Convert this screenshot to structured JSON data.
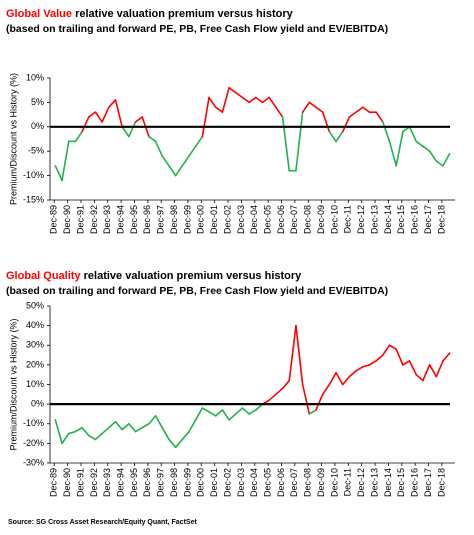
{
  "chart_data": [
    {
      "type": "line",
      "title_highlight": "Global Value",
      "title_rest": " relative valuation premium versus history",
      "subtitle": "(based on trailing and forward PE, PB, Free Cash Flow yield and EV/EBITDA)",
      "ylabel": "Premium/Discount vs History (%)",
      "colors": {
        "above": "#ff0000",
        "below": "#22b14c"
      },
      "xlim": [
        1989.6,
        2019.9
      ],
      "ylim": [
        -15,
        10
      ],
      "yticks": [
        {
          "value": -15,
          "label": "-15%"
        },
        {
          "value": -10,
          "label": "-10%"
        },
        {
          "value": -5,
          "label": "-5%"
        },
        {
          "value": 0,
          "label": "0%"
        },
        {
          "value": 5,
          "label": "5%"
        },
        {
          "value": 10,
          "label": "10%"
        }
      ],
      "xticks": [
        {
          "value": 1989.92,
          "label": "Dec-89"
        },
        {
          "value": 1990.92,
          "label": "Dec-90"
        },
        {
          "value": 1991.92,
          "label": "Dec-91"
        },
        {
          "value": 1992.92,
          "label": "Dec-92"
        },
        {
          "value": 1993.92,
          "label": "Dec-93"
        },
        {
          "value": 1994.92,
          "label": "Dec-94"
        },
        {
          "value": 1995.92,
          "label": "Dec-95"
        },
        {
          "value": 1996.92,
          "label": "Dec-96"
        },
        {
          "value": 1997.92,
          "label": "Dec-97"
        },
        {
          "value": 1998.92,
          "label": "Dec-98"
        },
        {
          "value": 1999.92,
          "label": "Dec-99"
        },
        {
          "value": 2000.92,
          "label": "Dec-00"
        },
        {
          "value": 2001.92,
          "label": "Dec-01"
        },
        {
          "value": 2002.92,
          "label": "Dec-02"
        },
        {
          "value": 2003.92,
          "label": "Dec-03"
        },
        {
          "value": 2004.92,
          "label": "Dec-04"
        },
        {
          "value": 2005.92,
          "label": "Dec-05"
        },
        {
          "value": 2006.92,
          "label": "Dec-06"
        },
        {
          "value": 2007.92,
          "label": "Dec-07"
        },
        {
          "value": 2008.92,
          "label": "Dec-08"
        },
        {
          "value": 2009.92,
          "label": "Dec-09"
        },
        {
          "value": 2010.92,
          "label": "Dec-10"
        },
        {
          "value": 2011.92,
          "label": "Dec-11"
        },
        {
          "value": 2012.92,
          "label": "Dec-12"
        },
        {
          "value": 2013.92,
          "label": "Dec-13"
        },
        {
          "value": 2014.92,
          "label": "Dec-14"
        },
        {
          "value": 2015.92,
          "label": "Dec-15"
        },
        {
          "value": 2016.92,
          "label": "Dec-16"
        },
        {
          "value": 2017.92,
          "label": "Dec-17"
        },
        {
          "value": 2018.92,
          "label": "Dec-18"
        }
      ],
      "x": [
        1990.0,
        1990.5,
        1991.0,
        1991.5,
        1992.0,
        1992.5,
        1993.0,
        1993.5,
        1994.0,
        1994.5,
        1995.0,
        1995.5,
        1996.0,
        1996.5,
        1997.0,
        1997.5,
        1998.0,
        1998.5,
        1999.0,
        1999.5,
        2000.0,
        2000.5,
        2001.0,
        2001.5,
        2002.0,
        2002.5,
        2003.0,
        2003.5,
        2004.0,
        2004.5,
        2005.0,
        2005.5,
        2006.0,
        2006.5,
        2007.0,
        2007.5,
        2008.0,
        2008.5,
        2009.0,
        2009.5,
        2010.0,
        2010.5,
        2011.0,
        2011.5,
        2012.0,
        2012.5,
        2013.0,
        2013.5,
        2014.0,
        2014.5,
        2015.0,
        2015.5,
        2016.0,
        2016.5,
        2017.0,
        2017.5,
        2018.0,
        2018.5,
        2019.0,
        2019.5
      ],
      "values": [
        -8,
        -11,
        -3,
        -3,
        -1,
        2,
        3,
        1,
        4,
        5.5,
        0,
        -2,
        1,
        2,
        -2,
        -3,
        -6,
        -8,
        -10,
        -8,
        -6,
        -4,
        -2,
        6,
        4,
        3,
        8,
        7,
        6,
        5,
        6,
        5,
        6,
        4,
        2,
        -9,
        -9,
        3,
        5,
        4,
        3,
        -1,
        -3,
        -1,
        2,
        3,
        4,
        3,
        3,
        1,
        -3,
        -8,
        -1,
        0,
        -3,
        -4,
        -5,
        -7,
        -8,
        -5.5
      ]
    },
    {
      "type": "line",
      "title_highlight": "Global Quality",
      "title_rest": " relative valuation premium versus history",
      "subtitle": "(based on trailing and forward PE, PB, Free Cash Flow yield and EV/EBITDA)",
      "ylabel": "Premium/Discount vs History (%)",
      "colors": {
        "above": "#ff0000",
        "below": "#22b14c"
      },
      "xlim": [
        1989.6,
        2019.9
      ],
      "ylim": [
        -30,
        50
      ],
      "yticks": [
        {
          "value": -30,
          "label": "-30%"
        },
        {
          "value": -20,
          "label": "-20%"
        },
        {
          "value": -10,
          "label": "-10%"
        },
        {
          "value": 0,
          "label": "0%"
        },
        {
          "value": 10,
          "label": "10%"
        },
        {
          "value": 20,
          "label": "20%"
        },
        {
          "value": 30,
          "label": "30%"
        },
        {
          "value": 40,
          "label": "40%"
        },
        {
          "value": 50,
          "label": "50%"
        }
      ],
      "xticks": [
        {
          "value": 1989.92,
          "label": "Dec-89"
        },
        {
          "value": 1990.92,
          "label": "Dec-90"
        },
        {
          "value": 1991.92,
          "label": "Dec-91"
        },
        {
          "value": 1992.92,
          "label": "Dec-92"
        },
        {
          "value": 1993.92,
          "label": "Dec-93"
        },
        {
          "value": 1994.92,
          "label": "Dec-94"
        },
        {
          "value": 1995.92,
          "label": "Dec-95"
        },
        {
          "value": 1996.92,
          "label": "Dec-96"
        },
        {
          "value": 1997.92,
          "label": "Dec-97"
        },
        {
          "value": 1998.92,
          "label": "Dec-98"
        },
        {
          "value": 1999.92,
          "label": "Dec-99"
        },
        {
          "value": 2000.92,
          "label": "Dec-00"
        },
        {
          "value": 2001.92,
          "label": "Dec-01"
        },
        {
          "value": 2002.92,
          "label": "Dec-02"
        },
        {
          "value": 2003.92,
          "label": "Dec-03"
        },
        {
          "value": 2004.92,
          "label": "Dec-04"
        },
        {
          "value": 2005.92,
          "label": "Dec-05"
        },
        {
          "value": 2006.92,
          "label": "Dec-06"
        },
        {
          "value": 2007.92,
          "label": "Dec-07"
        },
        {
          "value": 2008.92,
          "label": "Dec-08"
        },
        {
          "value": 2009.92,
          "label": "Dec-09"
        },
        {
          "value": 2010.92,
          "label": "Dec-10"
        },
        {
          "value": 2011.92,
          "label": "Dec-11"
        },
        {
          "value": 2012.92,
          "label": "Dec-12"
        },
        {
          "value": 2013.92,
          "label": "Dec-13"
        },
        {
          "value": 2014.92,
          "label": "Dec-14"
        },
        {
          "value": 2015.92,
          "label": "Dec-15"
        },
        {
          "value": 2016.92,
          "label": "Dec-16"
        },
        {
          "value": 2017.92,
          "label": "Dec-17"
        },
        {
          "value": 2018.92,
          "label": "Dec-18"
        }
      ],
      "x": [
        1990.0,
        1990.5,
        1991.0,
        1991.5,
        1992.0,
        1992.5,
        1993.0,
        1993.5,
        1994.0,
        1994.5,
        1995.0,
        1995.5,
        1996.0,
        1996.5,
        1997.0,
        1997.5,
        1998.0,
        1998.5,
        1999.0,
        1999.5,
        2000.0,
        2000.5,
        2001.0,
        2001.5,
        2002.0,
        2002.5,
        2003.0,
        2003.5,
        2004.0,
        2004.5,
        2005.0,
        2005.5,
        2006.0,
        2006.5,
        2007.0,
        2007.5,
        2008.0,
        2008.5,
        2009.0,
        2009.5,
        2010.0,
        2010.5,
        2011.0,
        2011.5,
        2012.0,
        2012.5,
        2013.0,
        2013.5,
        2014.0,
        2014.5,
        2015.0,
        2015.5,
        2016.0,
        2016.5,
        2017.0,
        2017.5,
        2018.0,
        2018.5,
        2019.0,
        2019.5
      ],
      "values": [
        -8,
        -20,
        -15,
        -14,
        -12,
        -16,
        -18,
        -15,
        -12,
        -9,
        -13,
        -10,
        -14,
        -12,
        -10,
        -6,
        -12,
        -18,
        -22,
        -18,
        -14,
        -8,
        -2,
        -4,
        -6,
        -3,
        -8,
        -5,
        -2,
        -5,
        -3,
        0,
        2,
        5,
        8,
        12,
        40,
        10,
        -5,
        -3,
        5,
        10,
        16,
        10,
        14,
        17,
        19,
        20,
        22,
        25,
        30,
        28,
        20,
        22,
        15,
        12,
        20,
        14,
        22,
        26
      ]
    }
  ],
  "source": "Source: SG Cross Asset Research/Equity Quant, FactSet"
}
